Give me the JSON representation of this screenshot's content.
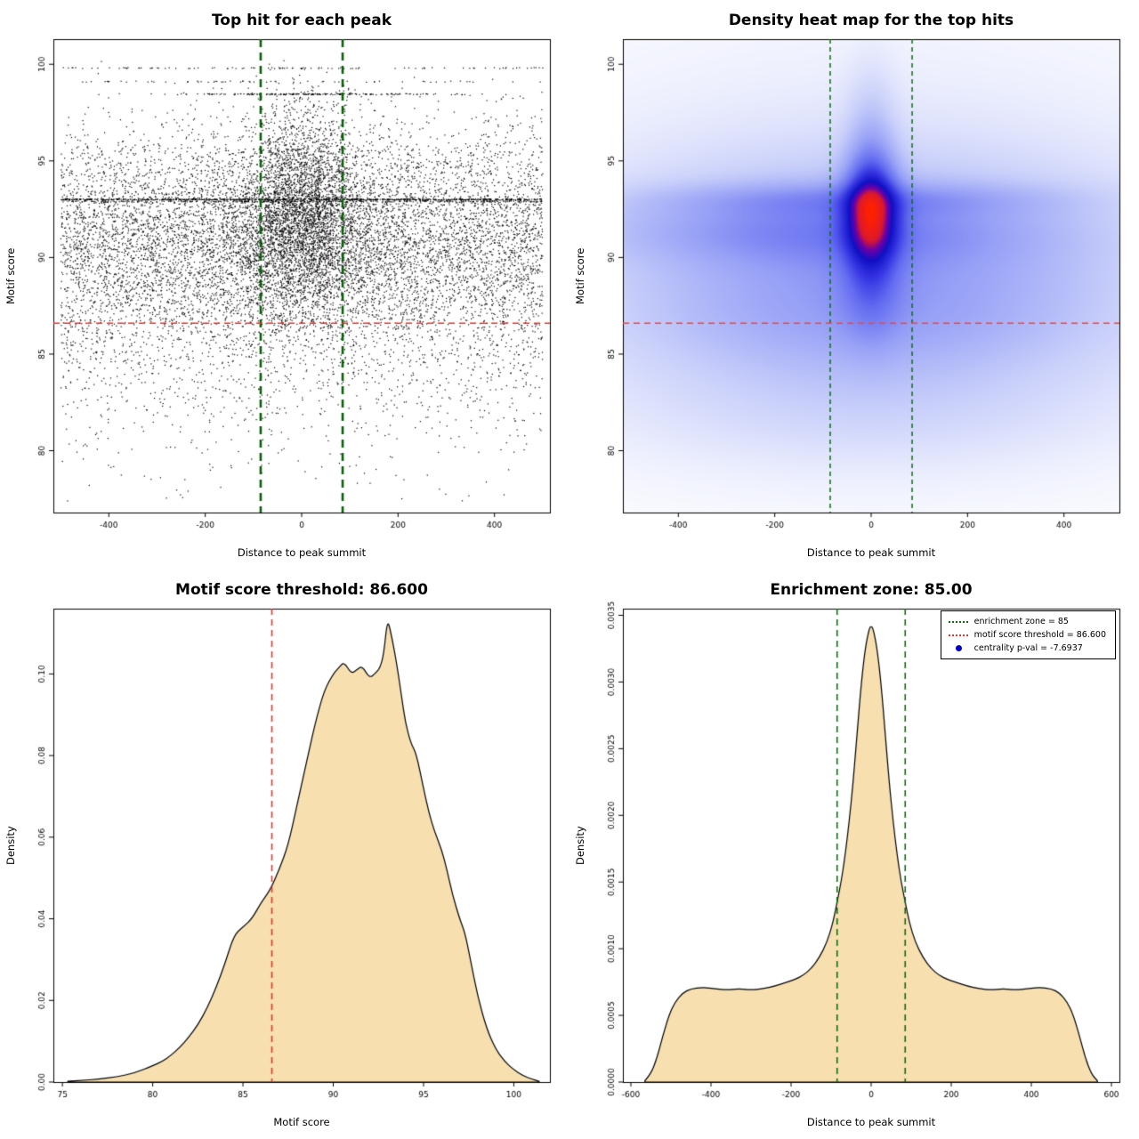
{
  "page": {
    "background": "#ffffff"
  },
  "chart_data": [
    {
      "type": "scatter",
      "title": "Top hit for each peak",
      "xlabel": "Distance to peak summit",
      "ylabel": "Motif score",
      "xlim": [
        -515,
        515
      ],
      "ylim": [
        76.8,
        101.3
      ],
      "xticks": {
        "values": [
          -400,
          -200,
          0,
          200,
          400
        ],
        "labels": [
          "-400",
          "-200",
          "0",
          "200",
          "400"
        ]
      },
      "yticks": {
        "values": [
          80,
          85,
          90,
          95,
          100
        ],
        "labels": [
          "80",
          "85",
          "90",
          "95",
          "100"
        ]
      },
      "points": {
        "seed": 42,
        "color": "#000000",
        "x_range": [
          -500,
          500
        ],
        "y_clip": [
          77.4,
          100.2
        ],
        "background": {
          "n": 9000,
          "y_mixture": [
            {
              "w": 0.62,
              "mean": 91.0,
              "sd": 2.4
            },
            {
              "w": 0.25,
              "mean": 87.5,
              "sd": 3.0
            },
            {
              "w": 0.08,
              "mean": 94.5,
              "sd": 2.0
            },
            {
              "w": 0.05,
              "mean": 84.0,
              "sd": 3.5
            }
          ]
        },
        "clusters": [
          {
            "n": 2800,
            "x_mean": 0,
            "x_sd": 60,
            "y_mixture": [
              {
                "w": 0.78,
                "mean": 91.5,
                "sd": 2.3
              },
              {
                "w": 0.22,
                "mean": 95.2,
                "sd": 1.8
              }
            ]
          },
          {
            "n": 1400,
            "x_mean": 0,
            "x_sd": 150,
            "y_mixture": [
              {
                "w": 1.0,
                "mean": 91.0,
                "sd": 2.8
              }
            ]
          }
        ],
        "dense_rows": [
          {
            "y": 93.0,
            "n": 700
          },
          {
            "y": 92.9,
            "n": 250
          },
          {
            "y": 98.45,
            "n": 200,
            "x_sd": 140
          },
          {
            "y": 99.8,
            "n": 100
          },
          {
            "y": 99.1,
            "n": 60
          }
        ]
      },
      "enrichment_zone_lines": {
        "x": [
          -85,
          85
        ],
        "color": "#0a5f0a",
        "width": 2.6,
        "dash": [
          9,
          6
        ]
      },
      "threshold_line": {
        "y": 86.6,
        "color": "#e8332a",
        "width": 1.6,
        "dash": [
          7,
          5
        ]
      }
    },
    {
      "type": "heatmap",
      "title": "Density heat map for the top hits",
      "xlabel": "Distance to peak summit",
      "ylabel": "Motif score",
      "xlim": [
        -515,
        515
      ],
      "ylim": [
        76.8,
        101.3
      ],
      "xticks": {
        "values": [
          -400,
          -200,
          0,
          200,
          400
        ],
        "labels": [
          "-400",
          "-200",
          "0",
          "200",
          "400"
        ]
      },
      "yticks": {
        "values": [
          80,
          85,
          90,
          95,
          100
        ],
        "labels": [
          "80",
          "85",
          "90",
          "95",
          "100"
        ]
      },
      "gamma": 0.55,
      "density_components": [
        {
          "w": 1.0,
          "mx": 0,
          "sx": 38,
          "my": 92.3,
          "sy": 1.6
        },
        {
          "w": 0.55,
          "mx": 0,
          "sx": 34,
          "my": 93.2,
          "sy": 3.0
        },
        {
          "w": 0.3,
          "mx": 0,
          "sx": 45,
          "my": 89.0,
          "sy": 2.2
        },
        {
          "w": 0.3,
          "mx": -40,
          "sx": 270,
          "my": 93.0,
          "sy": 0.6
        },
        {
          "w": 0.28,
          "mx": -130,
          "sx": 290,
          "my": 91.4,
          "sy": 1.1
        },
        {
          "w": 0.45,
          "mx": 0,
          "sx": 330,
          "my": 90.0,
          "sy": 3.0
        },
        {
          "w": 0.16,
          "mx": 0,
          "sx": 340,
          "my": 86.4,
          "sy": 1.7
        },
        {
          "w": 0.14,
          "mx": 0,
          "sx": 320,
          "my": 83.0,
          "sy": 2.2
        },
        {
          "w": 0.08,
          "mx": 0,
          "sx": 430,
          "my": 90.5,
          "sy": 6.0
        }
      ],
      "colormap": [
        [
          0,
          "#ffffff"
        ],
        [
          0.1,
          "#e9ecfd"
        ],
        [
          0.25,
          "#c6cdfa"
        ],
        [
          0.42,
          "#97a1f6"
        ],
        [
          0.57,
          "#636cf0"
        ],
        [
          0.68,
          "#3434e2"
        ],
        [
          0.78,
          "#0f0fc4"
        ],
        [
          0.855,
          "#6a00a8"
        ],
        [
          0.915,
          "#d81830"
        ],
        [
          1,
          "#ff2000"
        ]
      ],
      "enrichment_zone_lines": {
        "x": [
          -85,
          85
        ],
        "color": "#0f6b0f",
        "width": 1.5,
        "dash": [
          5,
          4
        ]
      },
      "threshold_line": {
        "y": 86.6,
        "color": "#f0463c",
        "width": 1.4,
        "dash": [
          7,
          5
        ]
      }
    },
    {
      "type": "area",
      "title": "Motif score threshold: 86.600",
      "xlabel": "Motif score",
      "ylabel": "Density",
      "xlim": [
        74.5,
        102
      ],
      "ylim": [
        0,
        0.116
      ],
      "xticks": {
        "values": [
          75,
          80,
          85,
          90,
          95,
          100
        ],
        "labels": [
          "75",
          "80",
          "85",
          "90",
          "95",
          "100"
        ]
      },
      "yticks": {
        "values": [
          0,
          0.02,
          0.04,
          0.06,
          0.08,
          0.1
        ],
        "labels": [
          "0.00",
          "0.02",
          "0.04",
          "0.06",
          "0.08",
          "0.10"
        ]
      },
      "fill": "#F7DFAF",
      "stroke": "#000000",
      "threshold_line": {
        "x": 86.6,
        "color": "#e8332a",
        "width": 1.6,
        "dash": [
          7,
          5
        ]
      },
      "x": [
        75.3,
        76,
        77,
        78,
        79,
        80,
        80.5,
        81,
        81.5,
        82,
        82.5,
        83,
        83.5,
        84,
        84.5,
        85,
        85.5,
        86,
        86.5,
        87,
        87.5,
        88,
        88.5,
        89,
        89.5,
        90,
        90.3,
        90.6,
        91,
        91.3,
        91.6,
        92,
        92.3,
        92.6,
        92.8,
        93,
        93.2,
        93.5,
        93.8,
        94,
        94.3,
        94.6,
        95,
        95.3,
        95.6,
        96,
        96.3,
        96.6,
        97,
        97.3,
        97.6,
        98,
        98.5,
        99,
        99.5,
        100,
        100.5,
        101,
        101.4
      ],
      "y": [
        0.0002,
        0.0004,
        0.0007,
        0.0013,
        0.0022,
        0.004,
        0.005,
        0.0065,
        0.0085,
        0.011,
        0.014,
        0.018,
        0.023,
        0.029,
        0.036,
        0.038,
        0.04,
        0.044,
        0.047,
        0.052,
        0.058,
        0.068,
        0.078,
        0.088,
        0.096,
        0.1,
        0.1015,
        0.103,
        0.1,
        0.101,
        0.102,
        0.099,
        0.1,
        0.1015,
        0.105,
        0.1135,
        0.11,
        0.103,
        0.094,
        0.088,
        0.083,
        0.0805,
        0.072,
        0.066,
        0.0615,
        0.057,
        0.052,
        0.046,
        0.04,
        0.0365,
        0.03,
        0.021,
        0.013,
        0.008,
        0.005,
        0.003,
        0.0016,
        0.0007,
        0.0002
      ]
    },
    {
      "type": "area",
      "title": "Enrichment zone: 85.00",
      "xlabel": "Distance to peak summit",
      "ylabel": "Density",
      "xlim": [
        -620,
        620
      ],
      "ylim": [
        0,
        0.00355
      ],
      "xticks": {
        "values": [
          -600,
          -400,
          -200,
          0,
          200,
          400,
          600
        ],
        "labels": [
          "-600",
          "-400",
          "-200",
          "0",
          "200",
          "400",
          "600"
        ]
      },
      "yticks": {
        "values": [
          0,
          0.0005,
          0.001,
          0.0015,
          0.002,
          0.0025,
          0.003,
          0.0035
        ],
        "labels": [
          "0.0000",
          "0.0005",
          "0.0010",
          "0.0015",
          "0.0020",
          "0.0025",
          "0.0030",
          "0.0035"
        ]
      },
      "fill": "#F7DFAF",
      "stroke": "#000000",
      "enrichment_zone_lines": {
        "x": [
          -85,
          85
        ],
        "color": "#0f6b0f",
        "width": 1.6,
        "dash": [
          7,
          5
        ]
      },
      "legend": {
        "entries": [
          {
            "key": "green-dotted-line",
            "label": "enrichment zone = 85"
          },
          {
            "key": "red-dotted-line",
            "label": "motif score threshold = 86.600"
          },
          {
            "key": "blue-dot",
            "label": "centrality p-val = -7.6937"
          }
        ]
      },
      "x": [
        -565,
        -550,
        -535,
        -520,
        -505,
        -490,
        -470,
        -450,
        -420,
        -390,
        -360,
        -330,
        -300,
        -270,
        -240,
        -210,
        -190,
        -170,
        -150,
        -130,
        -110,
        -95,
        -85,
        -75,
        -65,
        -55,
        -45,
        -35,
        -25,
        -15,
        -5,
        0,
        5,
        15,
        25,
        35,
        45,
        55,
        65,
        75,
        85,
        95,
        110,
        130,
        150,
        170,
        190,
        210,
        240,
        270,
        300,
        330,
        360,
        390,
        420,
        450,
        470,
        490,
        505,
        520,
        535,
        550,
        565
      ],
      "y": [
        1e-05,
        6e-05,
        0.00018,
        0.00035,
        0.0005,
        0.0006,
        0.00067,
        0.0007,
        0.00071,
        0.0007,
        0.00069,
        0.0007,
        0.00069,
        0.0007,
        0.00072,
        0.00075,
        0.00077,
        0.0008,
        0.00085,
        0.00093,
        0.00105,
        0.0012,
        0.00135,
        0.0015,
        0.0017,
        0.00195,
        0.00225,
        0.00262,
        0.00298,
        0.00325,
        0.0034,
        0.00342,
        0.0034,
        0.00325,
        0.00298,
        0.00262,
        0.00225,
        0.00195,
        0.0017,
        0.0015,
        0.00135,
        0.0012,
        0.00105,
        0.00093,
        0.00085,
        0.0008,
        0.00077,
        0.00075,
        0.00072,
        0.0007,
        0.00069,
        0.0007,
        0.00069,
        0.0007,
        0.00071,
        0.0007,
        0.00067,
        0.0006,
        0.0005,
        0.00035,
        0.00018,
        6e-05,
        1e-05
      ]
    }
  ]
}
